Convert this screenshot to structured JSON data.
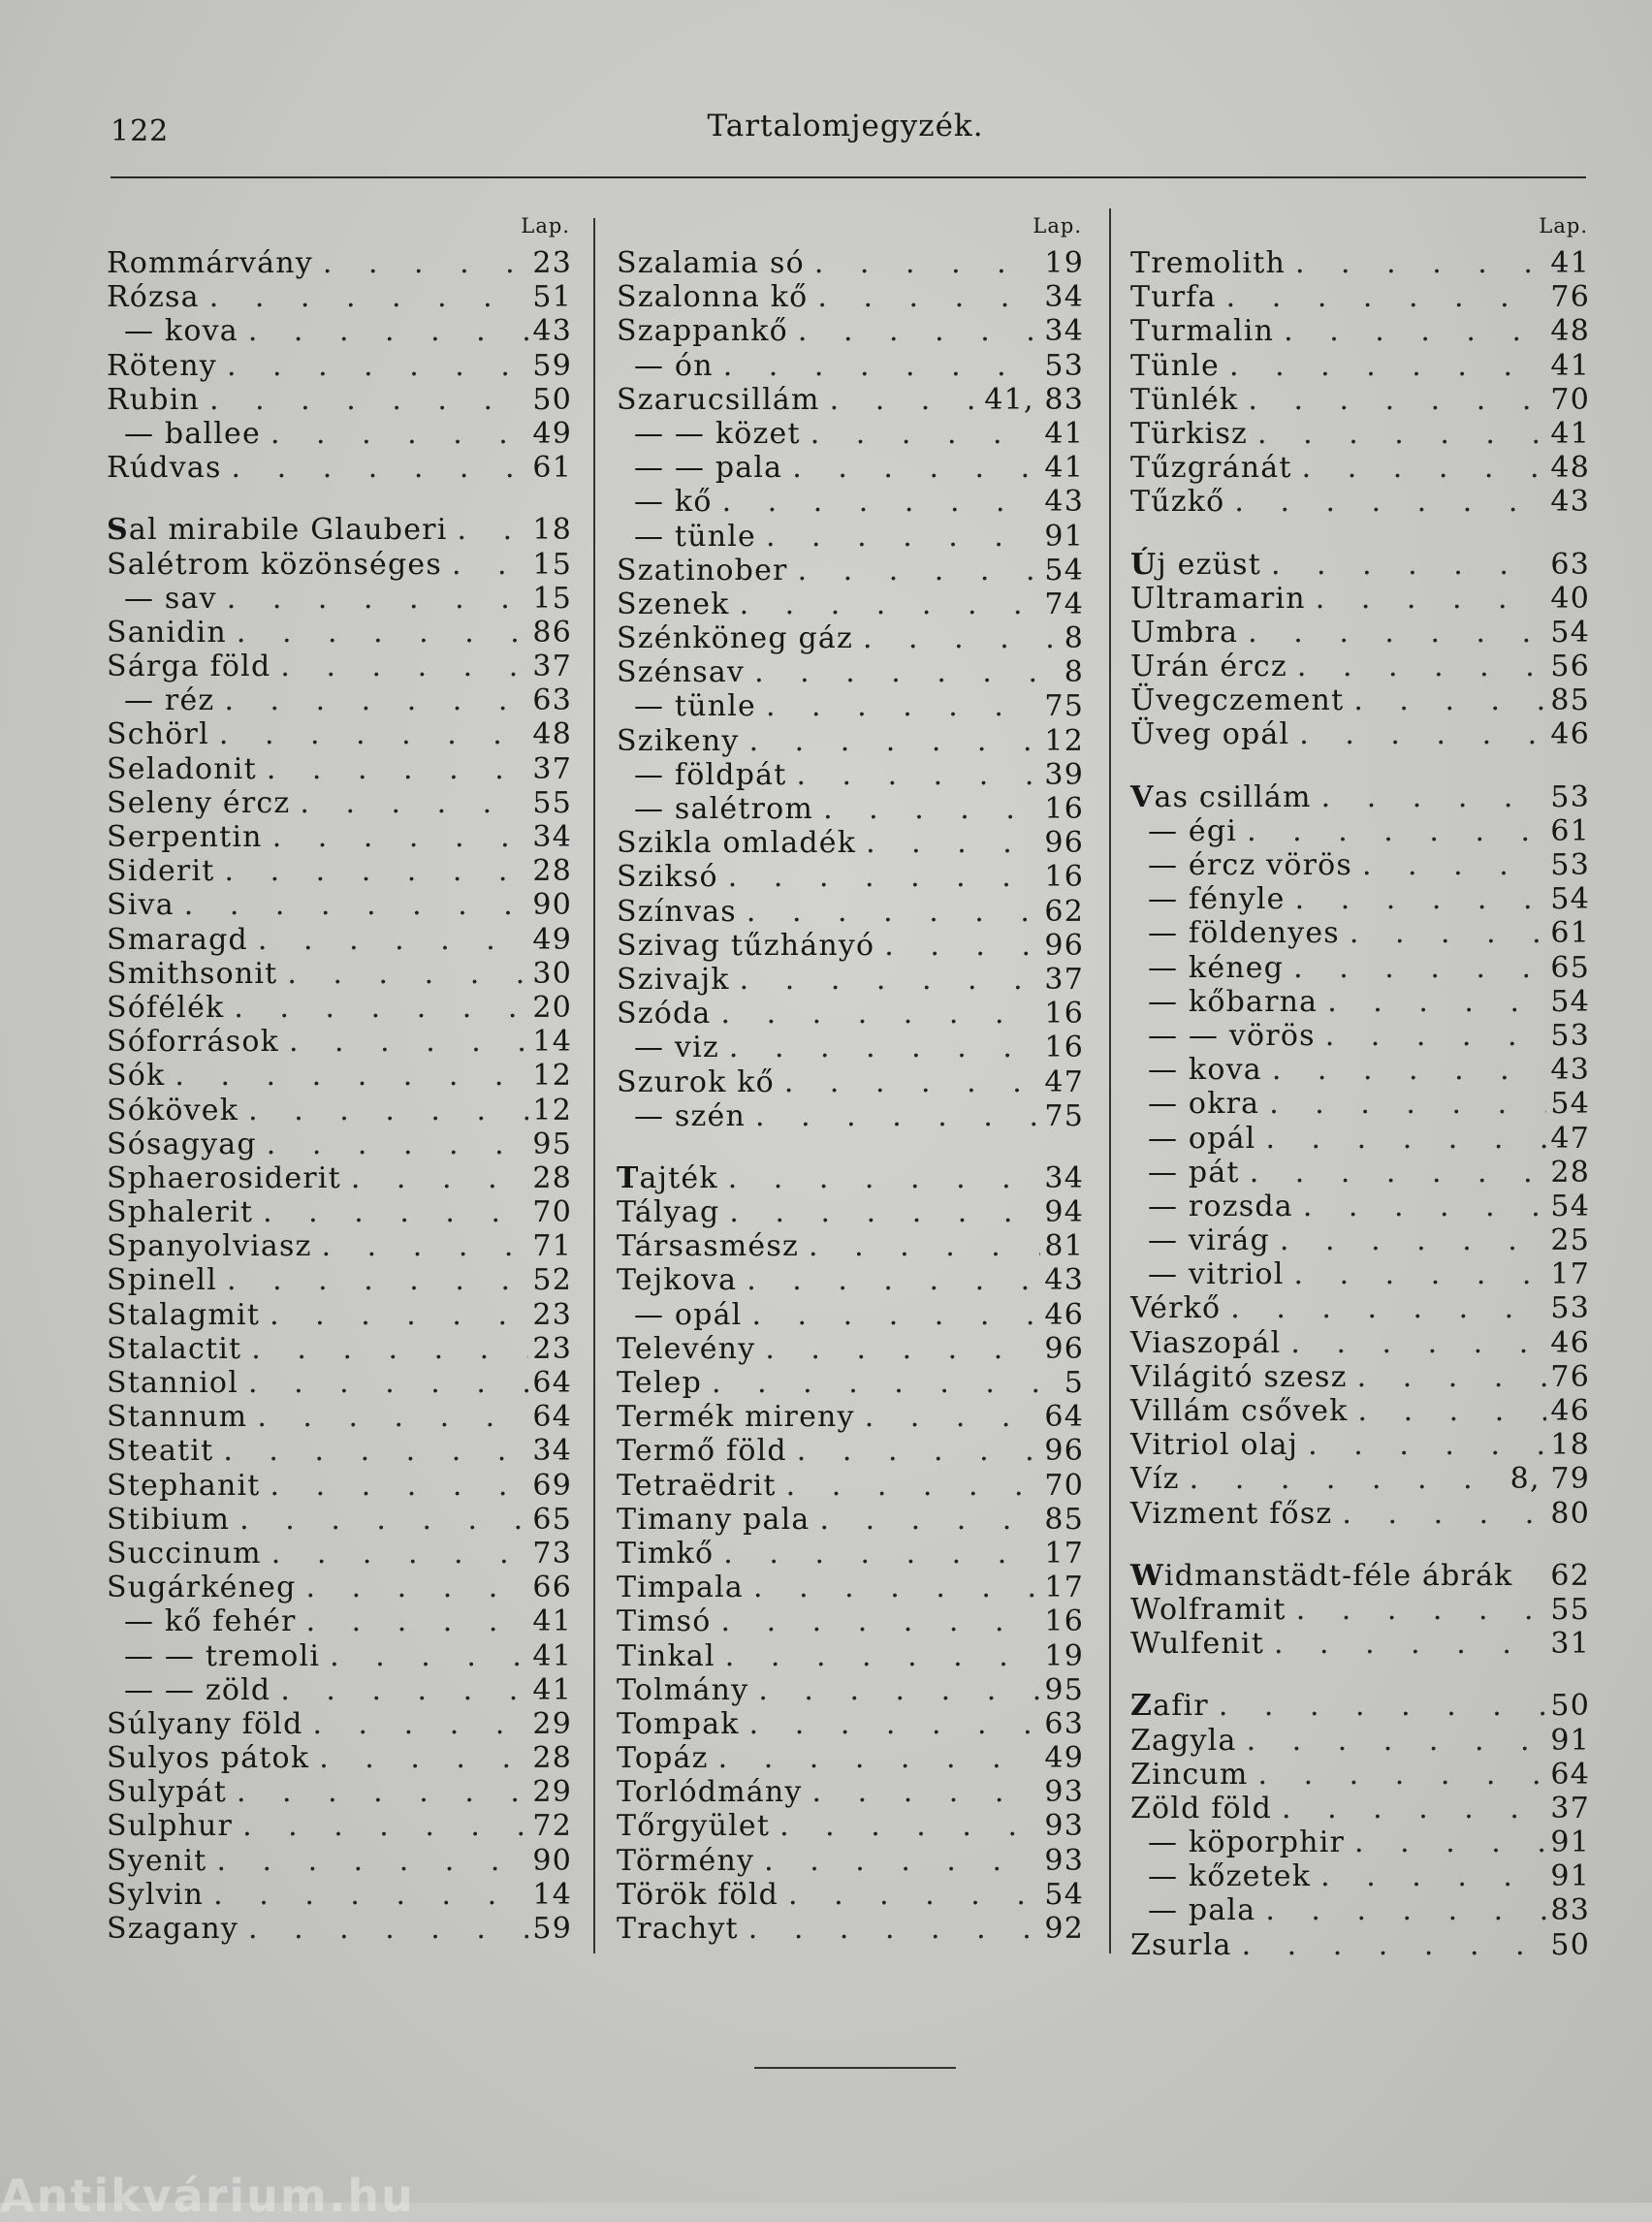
{
  "header": {
    "page_number": "122",
    "title": "Tartalomjegyzék."
  },
  "column_header": "Lap.",
  "watermark": "Antikvárium.hu",
  "columns": [
    {
      "entries": [
        {
          "term": "Rommárvány",
          "page": "23"
        },
        {
          "term": "Rózsa",
          "page": "51"
        },
        {
          "term": "— kova",
          "page": "43",
          "indent": true
        },
        {
          "term": "Röteny",
          "page": "59"
        },
        {
          "term": "Rubin",
          "page": "50"
        },
        {
          "term": "— ballee",
          "page": "49",
          "indent": true
        },
        {
          "term": "Rúdvas",
          "page": "61"
        },
        {
          "gap": true
        },
        {
          "term": "Sal mirabile Glauberi",
          "page": "18",
          "section": true
        },
        {
          "term": "Salétrom közönséges",
          "page": "15"
        },
        {
          "term": "— sav",
          "page": "15",
          "indent": true
        },
        {
          "term": "Sanidin",
          "page": "86"
        },
        {
          "term": "Sárga föld",
          "page": "37"
        },
        {
          "term": "— réz",
          "page": "63",
          "indent": true
        },
        {
          "term": "Schörl",
          "page": "48"
        },
        {
          "term": "Seladonit",
          "page": "37"
        },
        {
          "term": "Seleny ércz",
          "page": "55"
        },
        {
          "term": "Serpentin",
          "page": "34"
        },
        {
          "term": "Siderit",
          "page": "28"
        },
        {
          "term": "Siva",
          "page": "90"
        },
        {
          "term": "Smaragd",
          "page": "49"
        },
        {
          "term": "Smithsonit",
          "page": "30"
        },
        {
          "term": "Sófélék",
          "page": "20"
        },
        {
          "term": "Sóforrások",
          "page": "14"
        },
        {
          "term": "Sók",
          "page": "12"
        },
        {
          "term": "Sókövek",
          "page": "12"
        },
        {
          "term": "Sósagyag",
          "page": "95"
        },
        {
          "term": "Sphaerosiderit",
          "page": "28"
        },
        {
          "term": "Sphalerit",
          "page": "70"
        },
        {
          "term": "Spanyolviasz",
          "page": "71"
        },
        {
          "term": "Spinell",
          "page": "52"
        },
        {
          "term": "Stalagmit",
          "page": "23"
        },
        {
          "term": "Stalactit",
          "page": "23"
        },
        {
          "term": "Stanniol",
          "page": "64"
        },
        {
          "term": "Stannum",
          "page": "64"
        },
        {
          "term": "Steatit",
          "page": "34"
        },
        {
          "term": "Stephanit",
          "page": "69"
        },
        {
          "term": "Stibium",
          "page": "65"
        },
        {
          "term": "Succinum",
          "page": "73"
        },
        {
          "term": "Sugárkéneg",
          "page": "66"
        },
        {
          "term": "— kő fehér",
          "page": "41",
          "indent": true
        },
        {
          "term": "— — tremoli",
          "page": "41",
          "indent": true
        },
        {
          "term": "— — zöld",
          "page": "41",
          "indent": true
        },
        {
          "term": "Súlyany föld",
          "page": "29"
        },
        {
          "term": "Sulyos pátok",
          "page": "28"
        },
        {
          "term": "Sulypát",
          "page": "29"
        },
        {
          "term": "Sulphur",
          "page": "72"
        },
        {
          "term": "Syenit",
          "page": "90"
        },
        {
          "term": "Sylvin",
          "page": "14"
        },
        {
          "term": "Szagany",
          "page": "59"
        }
      ]
    },
    {
      "entries": [
        {
          "term": "Szalamia só",
          "page": "19"
        },
        {
          "term": "Szalonna kő",
          "page": "34"
        },
        {
          "term": "Szappankő",
          "page": "34"
        },
        {
          "term": "— ón",
          "page": "53",
          "indent": true
        },
        {
          "term": "Szarucsillám",
          "page": "41, 83"
        },
        {
          "term": "— — közet",
          "page": "41",
          "indent": true
        },
        {
          "term": "— — pala",
          "page": "41",
          "indent": true
        },
        {
          "term": "— kő",
          "page": "43",
          "indent": true
        },
        {
          "term": "— tünle",
          "page": "91",
          "indent": true
        },
        {
          "term": "Szatinober",
          "page": "54"
        },
        {
          "term": "Szenek",
          "page": "74"
        },
        {
          "term": "Szénköneg gáz",
          "page": "8"
        },
        {
          "term": "Szénsav",
          "page": "8"
        },
        {
          "term": "— tünle",
          "page": "75",
          "indent": true
        },
        {
          "term": "Szikeny",
          "page": "12"
        },
        {
          "term": "— földpát",
          "page": "39",
          "indent": true
        },
        {
          "term": "— salétrom",
          "page": "16",
          "indent": true
        },
        {
          "term": "Szikla omladék",
          "page": "96"
        },
        {
          "term": "Sziksó",
          "page": "16"
        },
        {
          "term": "Színvas",
          "page": "62"
        },
        {
          "term": "Szivag tűzhányó",
          "page": "96"
        },
        {
          "term": "Szivajk",
          "page": "37"
        },
        {
          "term": "Szóda",
          "page": "16"
        },
        {
          "term": "— viz",
          "page": "16",
          "indent": true
        },
        {
          "term": "Szurok kő",
          "page": "47"
        },
        {
          "term": "— szén",
          "page": "75",
          "indent": true
        },
        {
          "gap": true
        },
        {
          "term": "Tajték",
          "page": "34",
          "section": true
        },
        {
          "term": "Tályag",
          "page": "94"
        },
        {
          "term": "Társasmész",
          "page": "81"
        },
        {
          "term": "Tejkova",
          "page": "43"
        },
        {
          "term": "— opál",
          "page": "46",
          "indent": true
        },
        {
          "term": "Televény",
          "page": "96"
        },
        {
          "term": "Telep",
          "page": "5"
        },
        {
          "term": "Termék mireny",
          "page": "64"
        },
        {
          "term": "Termő föld",
          "page": "96"
        },
        {
          "term": "Tetraëdrit",
          "page": "70"
        },
        {
          "term": "Timany pala",
          "page": "85"
        },
        {
          "term": "Timkő",
          "page": "17"
        },
        {
          "term": "Timpala",
          "page": "17"
        },
        {
          "term": "Timsó",
          "page": "16"
        },
        {
          "term": "Tinkal",
          "page": "19"
        },
        {
          "term": "Tolmány",
          "page": "95"
        },
        {
          "term": "Tompak",
          "page": "63"
        },
        {
          "term": "Topáz",
          "page": "49"
        },
        {
          "term": "Torlódmány",
          "page": "93"
        },
        {
          "term": "Tőrgyület",
          "page": "93"
        },
        {
          "term": "Törmény",
          "page": "93"
        },
        {
          "term": "Török föld",
          "page": "54"
        },
        {
          "term": "Trachyt",
          "page": "92"
        }
      ]
    },
    {
      "entries": [
        {
          "term": "Tremolith",
          "page": "41"
        },
        {
          "term": "Turfa",
          "page": "76"
        },
        {
          "term": "Turmalin",
          "page": "48"
        },
        {
          "term": "Tünle",
          "page": "41"
        },
        {
          "term": "Tünlék",
          "page": "70"
        },
        {
          "term": "Türkisz",
          "page": "41"
        },
        {
          "term": "Tűzgránát",
          "page": "48"
        },
        {
          "term": "Tűzkő",
          "page": "43"
        },
        {
          "gap": true
        },
        {
          "term": "Új ezüst",
          "page": "63",
          "section": true
        },
        {
          "term": "Ultramarin",
          "page": "40"
        },
        {
          "term": "Umbra",
          "page": "54"
        },
        {
          "term": "Urán ércz",
          "page": "56"
        },
        {
          "term": "Üvegczement",
          "page": "85"
        },
        {
          "term": "Üveg opál",
          "page": "46"
        },
        {
          "gap": true
        },
        {
          "term": "Vas csillám",
          "page": "53",
          "section": true
        },
        {
          "term": "— égi",
          "page": "61",
          "indent": true
        },
        {
          "term": "— ércz vörös",
          "page": "53",
          "indent": true
        },
        {
          "term": "— fényle",
          "page": "54",
          "indent": true
        },
        {
          "term": "— földenyes",
          "page": "61",
          "indent": true
        },
        {
          "term": "— kéneg",
          "page": "65",
          "indent": true
        },
        {
          "term": "— kőbarna",
          "page": "54",
          "indent": true
        },
        {
          "term": "— — vörös",
          "page": "53",
          "indent": true
        },
        {
          "term": "— kova",
          "page": "43",
          "indent": true
        },
        {
          "term": "— okra",
          "page": "54",
          "indent": true
        },
        {
          "term": "— opál",
          "page": "47",
          "indent": true
        },
        {
          "term": "— pát",
          "page": "28",
          "indent": true
        },
        {
          "term": "— rozsda",
          "page": "54",
          "indent": true
        },
        {
          "term": "— virág",
          "page": "25",
          "indent": true
        },
        {
          "term": "— vitriol",
          "page": "17",
          "indent": true
        },
        {
          "term": "Vérkő",
          "page": "53"
        },
        {
          "term": "Viaszopál",
          "page": "46"
        },
        {
          "term": "Világitó szesz",
          "page": "76"
        },
        {
          "term": "Villám csővek",
          "page": "46"
        },
        {
          "term": "Vitriol olaj",
          "page": "18"
        },
        {
          "term": "Víz",
          "page": "8, 79"
        },
        {
          "term": "Vizment fősz",
          "page": "80"
        },
        {
          "gap": true
        },
        {
          "term": "Widmanstädt-féle ábrák",
          "page": "62",
          "section": true,
          "no_leader": true
        },
        {
          "term": "Wolframit",
          "page": "55"
        },
        {
          "term": "Wulfenit",
          "page": "31"
        },
        {
          "gap": true
        },
        {
          "term": "Zafir",
          "page": "50",
          "section": true
        },
        {
          "term": "Zagyla",
          "page": "91"
        },
        {
          "term": "Zincum",
          "page": "64"
        },
        {
          "term": "Zöld föld",
          "page": "37"
        },
        {
          "term": "— köporphir",
          "page": "91",
          "indent": true
        },
        {
          "term": "— kőzetek",
          "page": "91",
          "indent": true
        },
        {
          "term": "— pala",
          "page": "83",
          "indent": true
        },
        {
          "term": "Zsurla",
          "page": "50"
        }
      ]
    }
  ]
}
